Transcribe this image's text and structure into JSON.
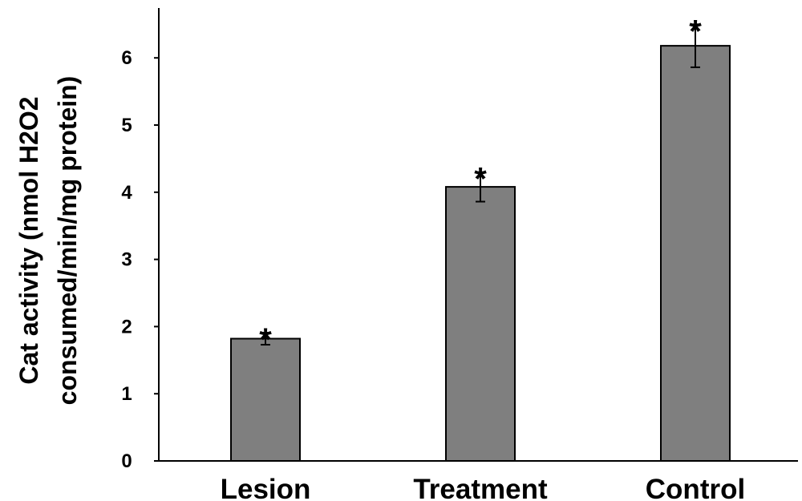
{
  "chart_data": {
    "type": "bar",
    "categories": [
      "Lesion",
      "Treatment",
      "Control"
    ],
    "values": [
      1.82,
      4.08,
      6.18
    ],
    "errors": [
      0.09,
      0.22,
      0.32
    ],
    "annotations": [
      "*",
      "*",
      "*"
    ],
    "ylabel_lines": [
      "Cat activity (nmol H2O2",
      "consumed/min/mg protein)"
    ],
    "xlabel": "",
    "title": "",
    "ylim": [
      0,
      6.6
    ],
    "yticks": [
      "0",
      "1",
      "2",
      "3",
      "4",
      "5",
      "6"
    ],
    "grid": false,
    "bar_color": "#7f7f7f",
    "bar_edge_color": "#000000"
  }
}
